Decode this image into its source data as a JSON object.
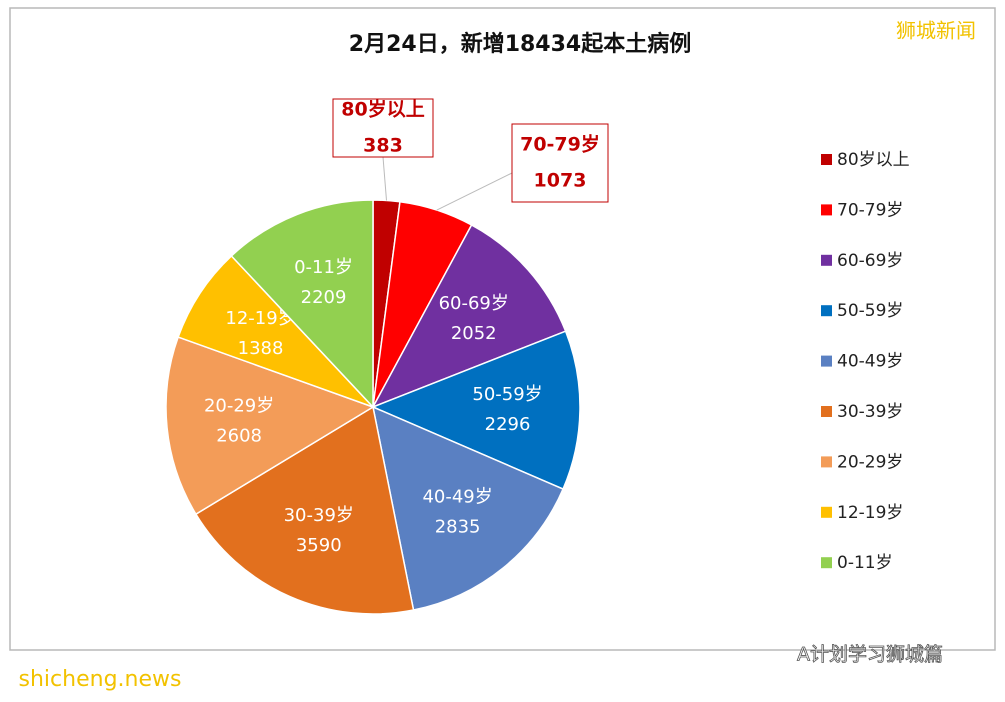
{
  "chart_data": {
    "type": "pie",
    "title": "2月24日，新增18434起本土病例",
    "categories": [
      "80岁以上",
      "70-79岁",
      "60-69岁",
      "50-59岁",
      "40-49岁",
      "30-39岁",
      "20-29岁",
      "12-19岁",
      "0-11岁"
    ],
    "values": [
      383,
      1073,
      2052,
      2296,
      2835,
      3590,
      2608,
      1388,
      2209
    ],
    "colors": [
      "#c00000",
      "#ff0000",
      "#7030a0",
      "#0070c0",
      "#5a80c2",
      "#e2701e",
      "#f39c58",
      "#ffc000",
      "#92d050"
    ],
    "legend": "right",
    "watermarks": [
      "狮城新闻",
      "A计划学习狮城篇",
      "shicheng.news"
    ]
  }
}
